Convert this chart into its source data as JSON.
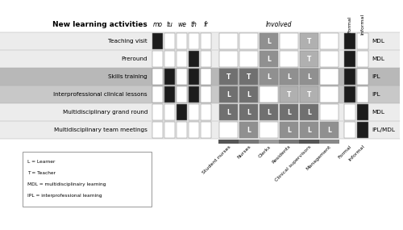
{
  "activities": [
    "Teaching visit",
    "Preround",
    "Skills training",
    "Interprofessional clinical lessons",
    "Multidisciplinary grand round",
    "Multidisciplinary team meetings"
  ],
  "row_bg_colors": [
    "#ececec",
    "#ececec",
    "#b8b8b8",
    "#c8c8c8",
    "#ececec",
    "#ececec"
  ],
  "days": [
    "mo",
    "tu",
    "we",
    "th",
    "fr"
  ],
  "day_cells": [
    [
      1,
      0,
      0,
      0,
      0
    ],
    [
      0,
      0,
      0,
      1,
      0
    ],
    [
      0,
      1,
      0,
      1,
      0
    ],
    [
      0,
      1,
      0,
      1,
      0
    ],
    [
      0,
      0,
      1,
      0,
      0
    ],
    [
      0,
      0,
      0,
      0,
      0
    ]
  ],
  "involved_cols": [
    "Student nurses",
    "Nurses",
    "Clerks",
    "Residents",
    "Clinical supervisors",
    "Management"
  ],
  "involved_cells": [
    [
      {
        "bg": "#ffffff",
        "text": ""
      },
      {
        "bg": "#ffffff",
        "text": ""
      },
      {
        "bg": "#909090",
        "text": "L"
      },
      {
        "bg": "#ffffff",
        "text": ""
      },
      {
        "bg": "#b0b0b0",
        "text": "T"
      },
      {
        "bg": "#ffffff",
        "text": ""
      }
    ],
    [
      {
        "bg": "#ffffff",
        "text": ""
      },
      {
        "bg": "#ffffff",
        "text": ""
      },
      {
        "bg": "#909090",
        "text": "L"
      },
      {
        "bg": "#ffffff",
        "text": ""
      },
      {
        "bg": "#b0b0b0",
        "text": "T"
      },
      {
        "bg": "#ffffff",
        "text": ""
      }
    ],
    [
      {
        "bg": "#707070",
        "text": "T"
      },
      {
        "bg": "#707070",
        "text": "T"
      },
      {
        "bg": "#909090",
        "text": "L"
      },
      {
        "bg": "#909090",
        "text": "L"
      },
      {
        "bg": "#909090",
        "text": "L"
      },
      {
        "bg": "#ffffff",
        "text": ""
      }
    ],
    [
      {
        "bg": "#707070",
        "text": "L"
      },
      {
        "bg": "#707070",
        "text": "L"
      },
      {
        "bg": "#ffffff",
        "text": ""
      },
      {
        "bg": "#b0b0b0",
        "text": "T"
      },
      {
        "bg": "#b0b0b0",
        "text": "T"
      },
      {
        "bg": "#ffffff",
        "text": ""
      }
    ],
    [
      {
        "bg": "#707070",
        "text": "L"
      },
      {
        "bg": "#707070",
        "text": "L"
      },
      {
        "bg": "#707070",
        "text": "L"
      },
      {
        "bg": "#707070",
        "text": "L"
      },
      {
        "bg": "#707070",
        "text": "L"
      },
      {
        "bg": "#ffffff",
        "text": ""
      }
    ],
    [
      {
        "bg": "#ffffff",
        "text": ""
      },
      {
        "bg": "#909090",
        "text": "L"
      },
      {
        "bg": "#ffffff",
        "text": ""
      },
      {
        "bg": "#909090",
        "text": "L"
      },
      {
        "bg": "#909090",
        "text": "L"
      },
      {
        "bg": "#909090",
        "text": "L"
      }
    ]
  ],
  "formal_cells": [
    1,
    1,
    1,
    1,
    0,
    0
  ],
  "informal_cells": [
    0,
    0,
    0,
    0,
    1,
    1
  ],
  "type_labels": [
    "MDL",
    "MDL",
    "IPL",
    "IPL",
    "MDL",
    "IPL/MDL"
  ],
  "fig_width": 5.0,
  "fig_height": 2.85,
  "dpi": 100,
  "black_color": "#1c1c1c",
  "white_color": "#ffffff",
  "legend_text": [
    "L = Learner",
    "T = Teacher",
    "MDL = multidisciplinairy learning",
    "IPL = interprofessional learning"
  ]
}
